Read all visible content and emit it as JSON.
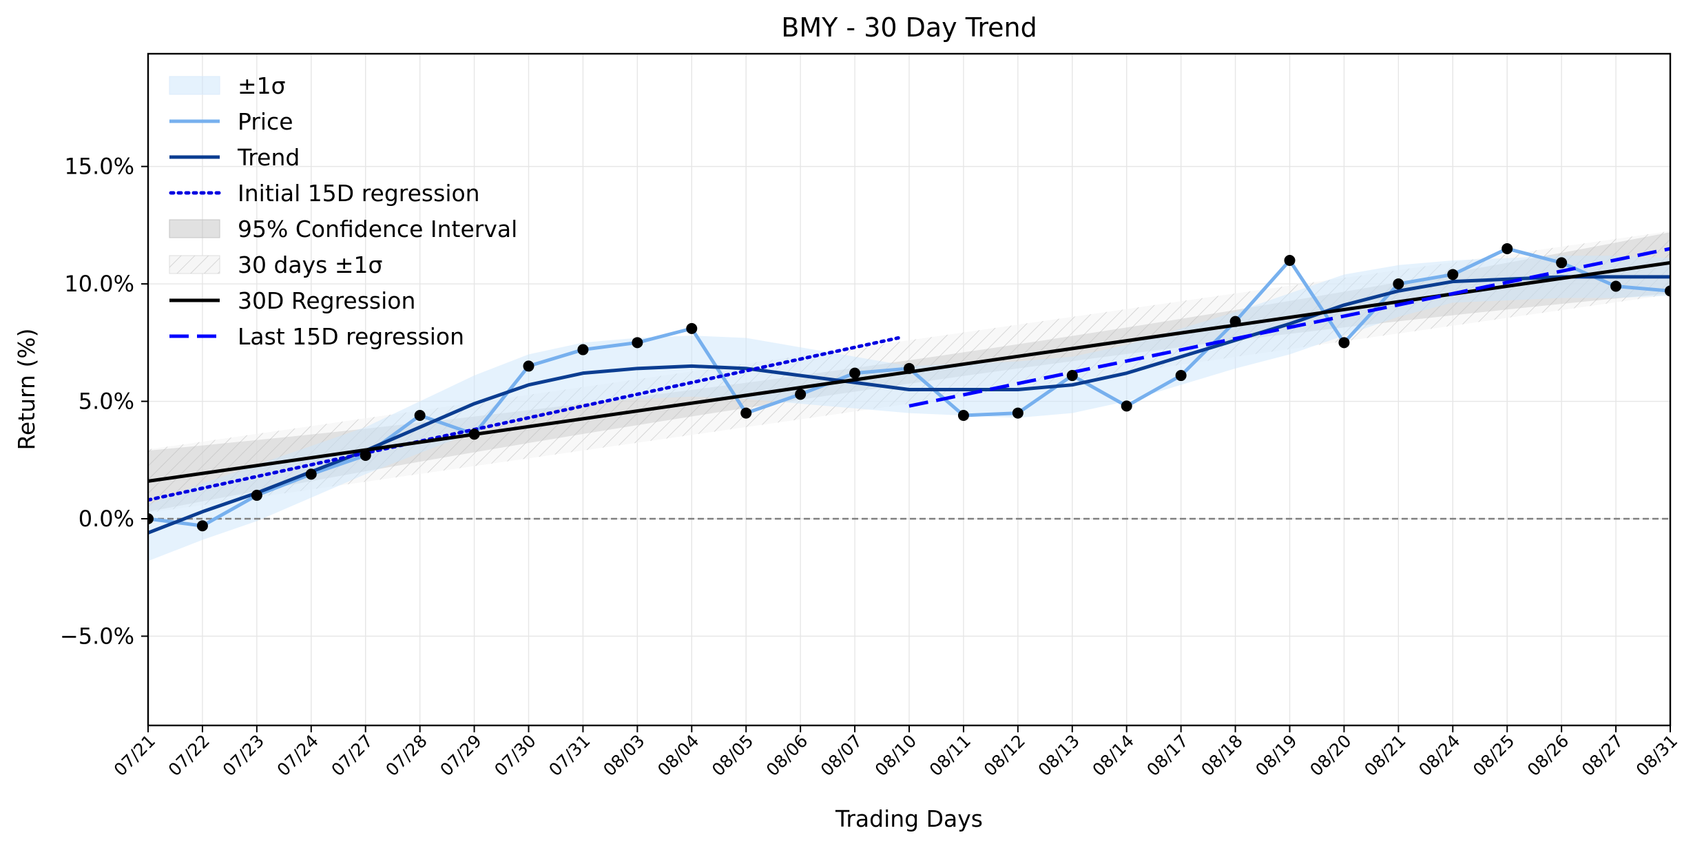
{
  "chart_data": {
    "type": "line",
    "title": "BMY - 30 Day Trend",
    "xlabel": "Trading Days",
    "ylabel": "Return (%)",
    "ylim": [
      -8.8,
      19.8
    ],
    "yticks": [
      -5.0,
      0.0,
      5.0,
      10.0,
      15.0
    ],
    "ytick_labels": [
      "−5.0%",
      "0.0%",
      "5.0%",
      "10.0%",
      "15.0%"
    ],
    "grid": true,
    "legend_position": "upper-left",
    "categories": [
      "07/21",
      "07/22",
      "07/23",
      "07/24",
      "07/27",
      "07/28",
      "07/29",
      "07/30",
      "07/31",
      "08/03",
      "08/04",
      "08/05",
      "08/06",
      "08/07",
      "08/10",
      "08/11",
      "08/12",
      "08/13",
      "08/14",
      "08/17",
      "08/18",
      "08/19",
      "08/20",
      "08/21",
      "08/24",
      "08/25",
      "08/26",
      "08/27",
      "08/31"
    ],
    "price": [
      0.0,
      -0.3,
      1.0,
      1.9,
      2.7,
      4.4,
      3.6,
      6.5,
      7.2,
      7.5,
      8.1,
      4.5,
      5.3,
      6.2,
      6.4,
      4.4,
      4.5,
      6.1,
      4.8,
      6.1,
      8.4,
      11.0,
      7.5,
      10.0,
      10.4,
      11.5,
      10.9,
      9.9,
      9.7
    ],
    "trend": [
      -0.6,
      0.3,
      1.1,
      2.0,
      2.9,
      3.9,
      4.9,
      5.7,
      6.2,
      6.4,
      6.5,
      6.4,
      6.1,
      5.8,
      5.5,
      5.5,
      5.5,
      5.7,
      6.2,
      6.9,
      7.6,
      8.3,
      9.1,
      9.7,
      10.1,
      10.2,
      10.3,
      10.3,
      10.3
    ],
    "sigma_band": [
      1.2,
      1.2,
      1.2,
      1.1,
      1.0,
      1.1,
      1.2,
      1.3,
      1.3,
      1.3,
      1.3,
      1.3,
      1.2,
      1.1,
      1.0,
      1.1,
      1.2,
      1.2,
      1.2,
      1.2,
      1.2,
      1.3,
      1.3,
      1.1,
      0.9,
      0.9,
      0.9,
      0.9,
      0.8
    ],
    "regression_30d": {
      "start": 1.6,
      "end": 10.9
    },
    "conf_interval_95": [
      1.3,
      0.5,
      1.3
    ],
    "sigma_30d": 1.35,
    "initial_15d_regression": {
      "x_start": 0,
      "x_end": 13.8,
      "start": 0.8,
      "slope": 0.5
    },
    "last_15d_regression": {
      "x_start": 14,
      "x_end": 28,
      "start": 4.8,
      "end": 11.5
    },
    "zero_line": 0.0,
    "legend": [
      "±1σ",
      "Price",
      "Trend",
      "Initial 15D regression",
      "95% Confidence Interval",
      "30 days ±1σ",
      "30D Regression",
      "Last 15D regression"
    ],
    "colors": {
      "price": "#77b0ee",
      "trend": "#0b3d91",
      "sigma_fill": "#cce6fb",
      "ci_fill": "#bdbdbd",
      "regression": "#000000",
      "initial_reg": "#0000e0",
      "last_reg": "#0000ff",
      "markers": "#000000",
      "zero_line": "#808080",
      "grid": "#e6e6e6"
    }
  }
}
